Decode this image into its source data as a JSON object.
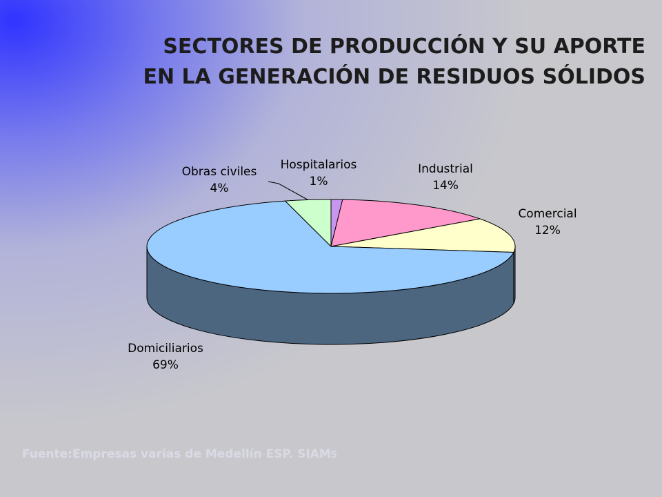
{
  "slide": {
    "title_line1": "SECTORES DE PRODUCCIÓN Y SU APORTE",
    "title_line2": "EN LA GENERACIÓN DE RESIDUOS SÓLIDOS",
    "source_text": "Fuente:Empresas varias de Medellín ESP.  SIAM",
    "source_suffix": "5"
  },
  "chart_data": {
    "type": "pie",
    "style": "3d",
    "title": "SECTORES DE PRODUCCIÓN Y SU APORTE EN LA GENERACIÓN DE RESIDUOS SÓLIDOS",
    "series": [
      {
        "categories": [
          "Hospitalarios",
          "Industrial",
          "Comercial",
          "Domiciliarios",
          "Obras civiles"
        ],
        "values": [
          1,
          14,
          12,
          69,
          4
        ],
        "labels": [
          "1%",
          "14%",
          "12%",
          "69%",
          "4%"
        ]
      }
    ],
    "colors": [
      "#c896f0",
      "#ff99cc",
      "#ffffcc",
      "#99ccff",
      "#ccffcc"
    ],
    "side_color": "#4d6680",
    "edge_color": "#000000",
    "legend": "none"
  }
}
